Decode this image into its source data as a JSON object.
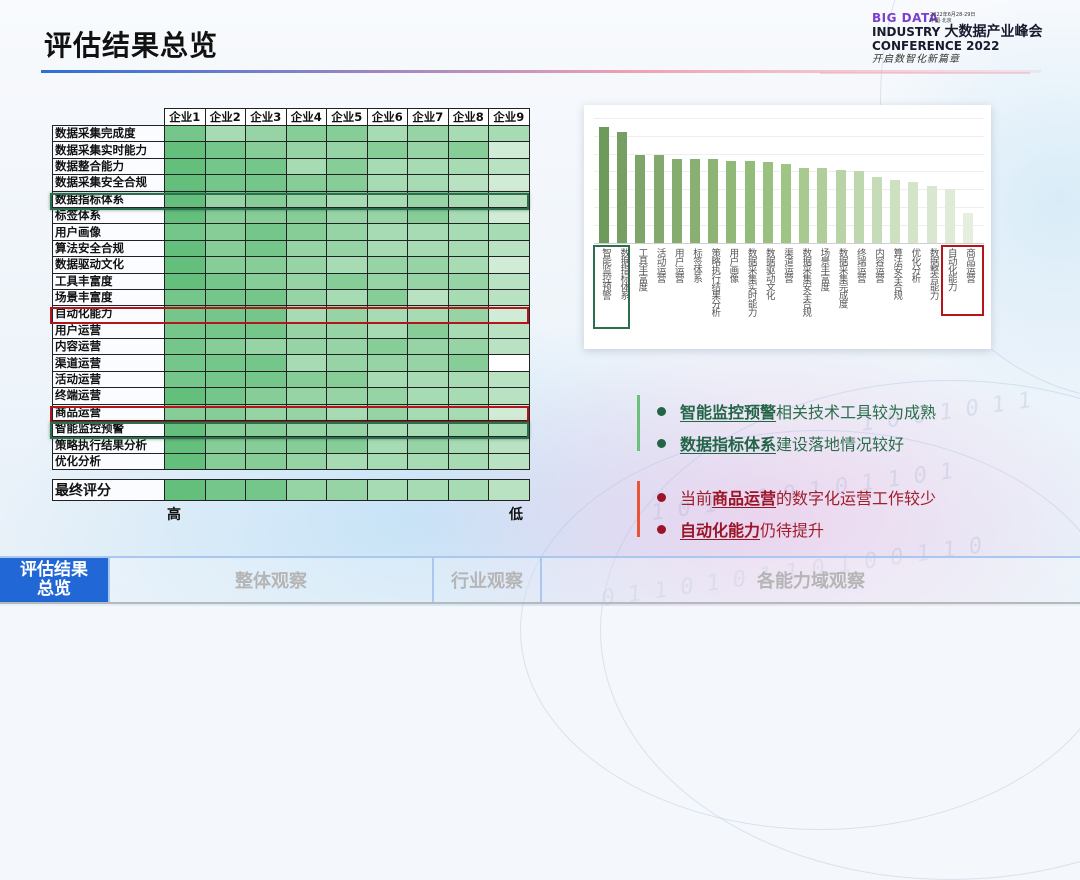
{
  "page": {
    "title": "评估结果总览"
  },
  "logo": {
    "line1": "BIG DATA",
    "date": "2022年6月28-29日",
    "location": "中国·北京",
    "line2_en": "INDUSTRY",
    "line2_cn": "大数据产业峰会",
    "line3": "CONFERENCE 2022",
    "slogan": "开启数智化新篇章"
  },
  "heatmap": {
    "columns": [
      "企业1",
      "企业2",
      "企业3",
      "企业4",
      "企业5",
      "企业6",
      "企业7",
      "企业8",
      "企业9"
    ],
    "rows": [
      {
        "label": "数据采集完成度",
        "levels": [
          2,
          5,
          4,
          3,
          3,
          5,
          4,
          5,
          5
        ]
      },
      {
        "label": "数据采集实时能力",
        "levels": [
          1,
          2,
          3,
          4,
          4,
          3,
          4,
          3,
          7
        ]
      },
      {
        "label": "数据整合能力",
        "levels": [
          1,
          2,
          2,
          5,
          3,
          5,
          5,
          5,
          6
        ]
      },
      {
        "label": "数据采集安全合规",
        "levels": [
          1,
          2,
          2,
          3,
          3,
          5,
          5,
          6,
          7
        ]
      },
      {
        "label": "数据指标体系",
        "levels": [
          1,
          4,
          3,
          4,
          5,
          5,
          4,
          5,
          6
        ],
        "highlight": "green"
      },
      {
        "label": "标签体系",
        "levels": [
          1,
          3,
          3,
          3,
          4,
          4,
          3,
          5,
          7
        ]
      },
      {
        "label": "用户画像",
        "levels": [
          2,
          3,
          2,
          3,
          4,
          5,
          5,
          5,
          5
        ]
      },
      {
        "label": "算法安全合规",
        "levels": [
          1,
          3,
          2,
          4,
          4,
          5,
          5,
          5,
          6
        ]
      },
      {
        "label": "数据驱动文化",
        "levels": [
          1,
          3,
          3,
          4,
          5,
          4,
          4,
          5,
          7
        ]
      },
      {
        "label": "工具丰富度",
        "levels": [
          1,
          2,
          3,
          4,
          3,
          4,
          4,
          4,
          6
        ]
      },
      {
        "label": "场景丰富度",
        "levels": [
          2,
          2,
          2,
          4,
          5,
          3,
          6,
          5,
          6
        ]
      },
      {
        "label": "自动化能力",
        "levels": [
          2,
          2,
          2,
          5,
          4,
          5,
          5,
          4,
          7
        ],
        "highlight": "red"
      },
      {
        "label": "用户运营",
        "levels": [
          2,
          2,
          2,
          4,
          4,
          5,
          3,
          5,
          6
        ]
      },
      {
        "label": "内容运营",
        "levels": [
          2,
          3,
          4,
          4,
          4,
          3,
          4,
          4,
          6
        ]
      },
      {
        "label": "渠道运营",
        "levels": [
          2,
          2,
          2,
          5,
          4,
          4,
          4,
          3,
          0
        ]
      },
      {
        "label": "活动运营",
        "levels": [
          2,
          2,
          2,
          3,
          3,
          5,
          5,
          5,
          6
        ]
      },
      {
        "label": "终端运营",
        "levels": [
          1,
          2,
          3,
          4,
          4,
          4,
          5,
          5,
          6
        ]
      },
      {
        "label": "商品运营",
        "levels": [
          3,
          3,
          4,
          4,
          5,
          4,
          5,
          5,
          7
        ],
        "highlight": "red"
      },
      {
        "label": "智能监控预警",
        "levels": [
          1,
          3,
          3,
          4,
          4,
          5,
          5,
          4,
          5
        ],
        "highlight": "green"
      },
      {
        "label": "策略执行结果分析",
        "levels": [
          1,
          3,
          3,
          3,
          3,
          5,
          4,
          5,
          6
        ]
      },
      {
        "label": "优化分析",
        "levels": [
          1,
          3,
          3,
          4,
          5,
          5,
          5,
          5,
          6
        ]
      }
    ],
    "final": {
      "label": "最终评分",
      "levels": [
        1,
        2,
        2,
        4,
        4,
        5,
        5,
        5,
        6
      ]
    },
    "scale_high": "高",
    "scale_low": "低",
    "colors": {
      "1": "#64be7c",
      "2": "#75c68a",
      "3": "#86cd98",
      "4": "#96d4a6",
      "5": "#a6dbb3",
      "6": "#b8e2c2",
      "7": "#d0ebd6",
      "0": "#ffffff"
    }
  },
  "chart_data": {
    "type": "bar",
    "title": "",
    "xlabel": "",
    "ylabel": "",
    "grid": true,
    "ylim": [
      0,
      7
    ],
    "categories": [
      "智能监控预警",
      "数据指标体系",
      "工具丰富度",
      "活动运营",
      "用户运营",
      "标签体系",
      "策略执行结果分析",
      "用户画像",
      "数据采集实时能力",
      "数据驱动文化",
      "渠道运营",
      "数据采集安全合规",
      "场景丰富度",
      "数据采集完成度",
      "终端运营",
      "内容运营",
      "算法安全合规",
      "优化分析",
      "数据整合能力",
      "自动化能力",
      "商品运营"
    ],
    "values": [
      6.5,
      6.2,
      4.9,
      4.9,
      4.7,
      4.7,
      4.7,
      4.6,
      4.6,
      4.5,
      4.4,
      4.2,
      4.2,
      4.1,
      4.0,
      3.7,
      3.5,
      3.4,
      3.2,
      3.0,
      1.7
    ],
    "colors": [
      "#6e9a5c",
      "#789f63",
      "#7fa56a",
      "#83aa6c",
      "#86ad6f",
      "#89b072",
      "#8cb474",
      "#90b877",
      "#93bb7a",
      "#98c07e",
      "#9fc585",
      "#a8ca91",
      "#b0ce9b",
      "#b8d3a5",
      "#bfd7ae",
      "#c6dbb7",
      "#cde0c0",
      "#d3e4c8",
      "#d9e7d0",
      "#dfead7",
      "#e6eedf"
    ],
    "highlight_green": [
      "智能监控预警",
      "数据指标体系"
    ],
    "highlight_red": [
      "自动化能力",
      "商品运营"
    ]
  },
  "conclusions": {
    "good": [
      {
        "keyword": "智能监控预警",
        "rest": "相关技术工具较为成熟"
      },
      {
        "keyword": "数据指标体系",
        "rest": "建设落地情况较好"
      }
    ],
    "bad": [
      {
        "prefix": "当前",
        "keyword": "商品运营",
        "rest": "的数字化运营工作较少"
      },
      {
        "prefix": "",
        "keyword": "自动化能力",
        "rest": "仍待提升"
      }
    ]
  },
  "nav": {
    "items": [
      {
        "label": "评估结果\n总览",
        "line1": "评估结果",
        "line2": "总览",
        "active": true
      },
      {
        "label": "整体观察",
        "active": false
      },
      {
        "label": "行业观察",
        "active": false
      },
      {
        "label": "各能力域观察",
        "active": false
      }
    ]
  }
}
